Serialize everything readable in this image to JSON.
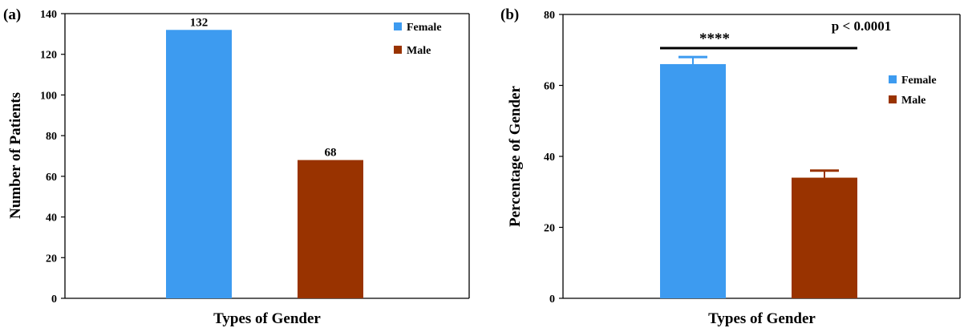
{
  "colors": {
    "female": "#3d9bf0",
    "male": "#993300",
    "axis": "#000000"
  },
  "chart_data": [
    {
      "type": "bar",
      "panel_label": "(a)",
      "categories": [
        "Female",
        "Male"
      ],
      "series": [
        {
          "name": "Female",
          "value": 132,
          "color": "#3d9bf0"
        },
        {
          "name": "Male",
          "value": 68,
          "color": "#993300"
        }
      ],
      "data_labels": [
        "132",
        "68"
      ],
      "xlabel": "Types of Gender",
      "ylabel": "Number of Patients",
      "ylim": [
        0,
        140
      ],
      "yticks": [
        0,
        20,
        40,
        60,
        80,
        100,
        120,
        140
      ],
      "legend": {
        "position": "top-right",
        "entries": [
          "Female",
          "Male"
        ]
      },
      "grid": false
    },
    {
      "type": "bar",
      "panel_label": "(b)",
      "categories": [
        "Female",
        "Male"
      ],
      "series": [
        {
          "name": "Female",
          "value": 66,
          "error": 2,
          "color": "#3d9bf0"
        },
        {
          "name": "Male",
          "value": 34,
          "error": 2,
          "color": "#993300"
        }
      ],
      "xlabel": "Types of Gender",
      "ylabel": "Percentage of Gender",
      "ylim": [
        0,
        80
      ],
      "yticks": [
        0,
        20,
        40,
        60,
        80
      ],
      "legend": {
        "position": "right",
        "entries": [
          "Female",
          "Male"
        ]
      },
      "annotations": {
        "significance": "****",
        "p_value": "p < 0.0001"
      },
      "grid": false
    }
  ]
}
